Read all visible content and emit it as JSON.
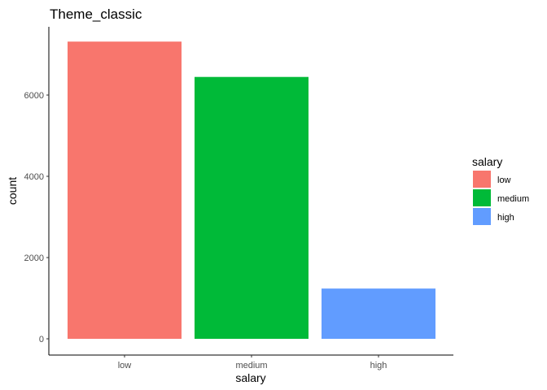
{
  "chart_data": {
    "type": "bar",
    "title": "Theme_classic",
    "xlabel": "salary",
    "ylabel": "count",
    "categories": [
      "low",
      "medium",
      "high"
    ],
    "values": [
      7316,
      6446,
      1237
    ],
    "colors": [
      "#F8766D",
      "#00BA38",
      "#619CFF"
    ],
    "ylim": [
      0,
      7700
    ],
    "yticks": [
      0,
      2000,
      4000,
      6000
    ],
    "ytick_labels": [
      "0",
      "2000",
      "4000",
      "6000"
    ],
    "grid": false,
    "legend": {
      "title": "salary",
      "placement": "right",
      "items": [
        {
          "label": "low",
          "color": "#F8766D"
        },
        {
          "label": "medium",
          "color": "#00BA38"
        },
        {
          "label": "high",
          "color": "#619CFF"
        }
      ]
    }
  }
}
